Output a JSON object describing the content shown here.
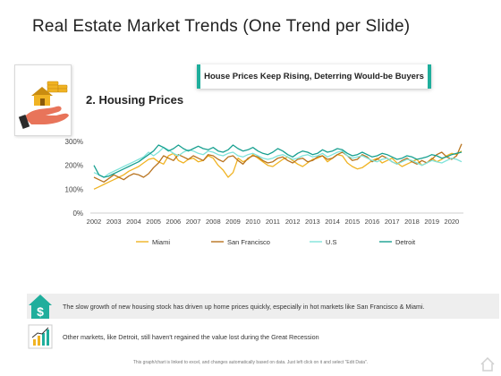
{
  "page": {
    "title": "Real Estate Market Trends (One Trend per Slide)",
    "banner": "House Prices Keep Rising, Deterring Would-be Buyers",
    "subtitle": "2. Housing Prices",
    "footer": "This graph/chart is linked to excel, and changes automatically based on data. Just left click on it and select \"Edit Data\".",
    "icons": {
      "card": "house-money-hand-icon",
      "row1": "house-dollar-icon",
      "row2": "growth-chart-icon",
      "corner": "home-outline-icon"
    },
    "colors": {
      "accent": "#1fae9c",
      "gold": "#f0b323"
    }
  },
  "notes": [
    "The slow growth of new housing stock has driven up home prices quickly, especially in hot markets like San Francisco & Miami.",
    "Other markets, like Detroit, still haven't regained the value lost during the Great Recession"
  ],
  "chart_data": {
    "type": "line",
    "x": [
      2002.0,
      2002.25,
      2002.5,
      2002.75,
      2003.0,
      2003.25,
      2003.5,
      2003.75,
      2004.0,
      2004.25,
      2004.5,
      2004.75,
      2005.0,
      2005.25,
      2005.5,
      2005.75,
      2006.0,
      2006.25,
      2006.5,
      2006.75,
      2007.0,
      2007.25,
      2007.5,
      2007.75,
      2008.0,
      2008.25,
      2008.5,
      2008.75,
      2009.0,
      2009.25,
      2009.5,
      2009.75,
      2010.0,
      2010.25,
      2010.5,
      2010.75,
      2011.0,
      2011.25,
      2011.5,
      2011.75,
      2012.0,
      2012.25,
      2012.5,
      2012.75,
      2013.0,
      2013.25,
      2013.5,
      2013.75,
      2014.0,
      2014.25,
      2014.5,
      2014.75,
      2015.0,
      2015.25,
      2015.5,
      2015.75,
      2016.0,
      2016.25,
      2016.5,
      2016.75,
      2017.0,
      2017.25,
      2017.5,
      2017.75,
      2018.0,
      2018.25,
      2018.5,
      2018.75,
      2019.0,
      2019.25,
      2019.5,
      2019.75,
      2020.0,
      2020.25,
      2020.5
    ],
    "xticks": [
      "2002",
      "2003",
      "2004",
      "2005",
      "2006",
      "2007",
      "2008",
      "2009",
      "2010",
      "2011",
      "2012",
      "2013",
      "2014",
      "2015",
      "2016",
      "2017",
      "2018",
      "2019",
      "2020"
    ],
    "yticks": [
      "0%",
      "100%",
      "200%",
      "300%"
    ],
    "ylim": [
      0,
      300
    ],
    "xlim": [
      2002,
      2020.5
    ],
    "grid": false,
    "legend": "bottom",
    "series": [
      {
        "name": "Miami",
        "color": "#f0b323",
        "values": [
          100,
          110,
          120,
          130,
          140,
          150,
          160,
          175,
          185,
          195,
          210,
          225,
          230,
          215,
          205,
          240,
          250,
          220,
          210,
          225,
          230,
          215,
          220,
          240,
          230,
          200,
          180,
          150,
          170,
          230,
          215,
          225,
          245,
          230,
          215,
          200,
          195,
          210,
          225,
          235,
          220,
          205,
          195,
          210,
          225,
          230,
          240,
          215,
          230,
          245,
          240,
          210,
          195,
          185,
          190,
          205,
          220,
          230,
          210,
          220,
          230,
          210,
          195,
          205,
          215,
          225,
          200,
          210,
          230,
          215,
          225,
          240,
          250,
          245,
          260
        ]
      },
      {
        "name": "San Francisco",
        "color": "#b8731f",
        "values": [
          150,
          140,
          130,
          145,
          160,
          150,
          140,
          155,
          165,
          160,
          150,
          165,
          190,
          210,
          240,
          230,
          220,
          245,
          235,
          225,
          240,
          230,
          220,
          245,
          240,
          225,
          215,
          235,
          240,
          220,
          205,
          230,
          240,
          235,
          220,
          210,
          215,
          230,
          235,
          220,
          210,
          225,
          230,
          215,
          220,
          235,
          240,
          225,
          230,
          245,
          255,
          240,
          220,
          225,
          245,
          235,
          215,
          225,
          240,
          230,
          215,
          205,
          220,
          230,
          215,
          205,
          220,
          210,
          225,
          245,
          255,
          235,
          225,
          240,
          290
        ]
      },
      {
        "name": "U.S",
        "color": "#7fe3da",
        "values": [
          170,
          160,
          150,
          165,
          175,
          185,
          195,
          205,
          215,
          225,
          235,
          255,
          240,
          255,
          275,
          265,
          250,
          240,
          255,
          265,
          260,
          250,
          245,
          260,
          255,
          245,
          240,
          250,
          255,
          240,
          235,
          245,
          250,
          240,
          230,
          225,
          230,
          240,
          245,
          235,
          225,
          230,
          240,
          245,
          235,
          240,
          250,
          235,
          245,
          255,
          260,
          240,
          230,
          235,
          240,
          230,
          220,
          215,
          225,
          230,
          215,
          205,
          215,
          225,
          220,
          210,
          200,
          210,
          220,
          215,
          210,
          220,
          230,
          225,
          215
        ]
      },
      {
        "name": "Detroit",
        "color": "#18a090",
        "values": [
          200,
          160,
          150,
          155,
          165,
          175,
          185,
          195,
          205,
          215,
          230,
          245,
          260,
          285,
          275,
          260,
          270,
          285,
          270,
          260,
          270,
          280,
          270,
          265,
          275,
          260,
          255,
          265,
          285,
          270,
          260,
          265,
          275,
          260,
          250,
          245,
          255,
          270,
          260,
          245,
          235,
          250,
          260,
          255,
          245,
          250,
          265,
          255,
          260,
          270,
          265,
          250,
          240,
          245,
          255,
          245,
          235,
          240,
          250,
          245,
          235,
          225,
          230,
          240,
          235,
          225,
          230,
          235,
          245,
          240,
          230,
          235,
          245,
          250,
          255
        ]
      }
    ]
  }
}
